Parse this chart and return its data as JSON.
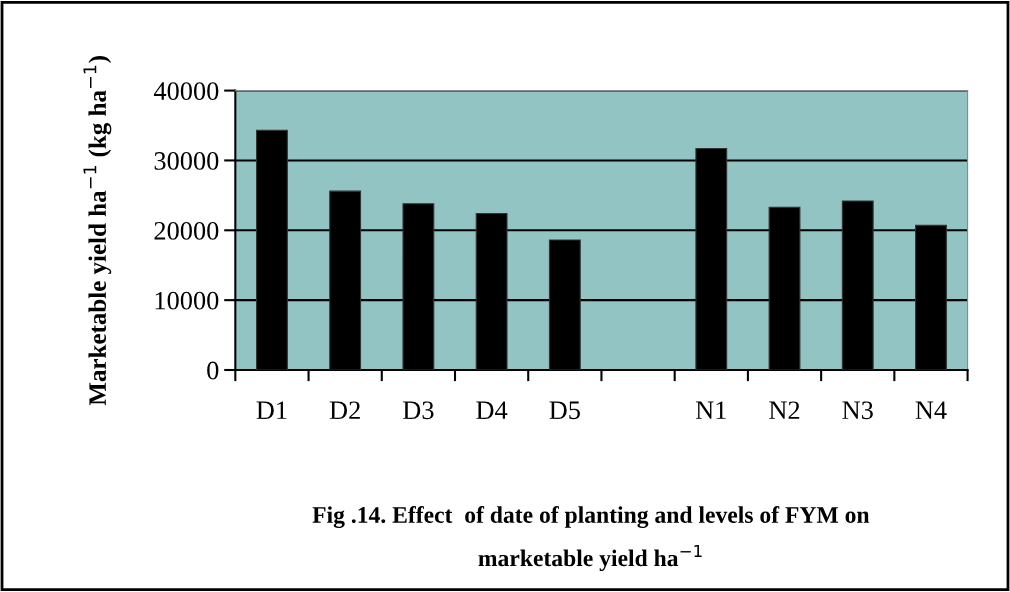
{
  "chart_data": {
    "type": "bar",
    "title": "Fig .14. Effect  of date of planting and levels of FYM on\nmarketable yield ha$^{−1}$",
    "ylabel": "Marketable yield ha$^{−1}$ (kg ha$^{−1}$)",
    "categories": [
      "D1",
      "D2",
      "D3",
      "D4",
      "D5",
      null,
      "N1",
      "N2",
      "N3",
      "N4"
    ],
    "values": [
      34300,
      25600,
      23800,
      22400,
      18600,
      null,
      31700,
      23300,
      24200,
      20700
    ],
    "color": "#000000",
    "ylim": [
      0,
      40000
    ],
    "yticks": [
      0,
      10000,
      20000,
      30000,
      40000
    ],
    "grid": "y",
    "legend": false
  }
}
